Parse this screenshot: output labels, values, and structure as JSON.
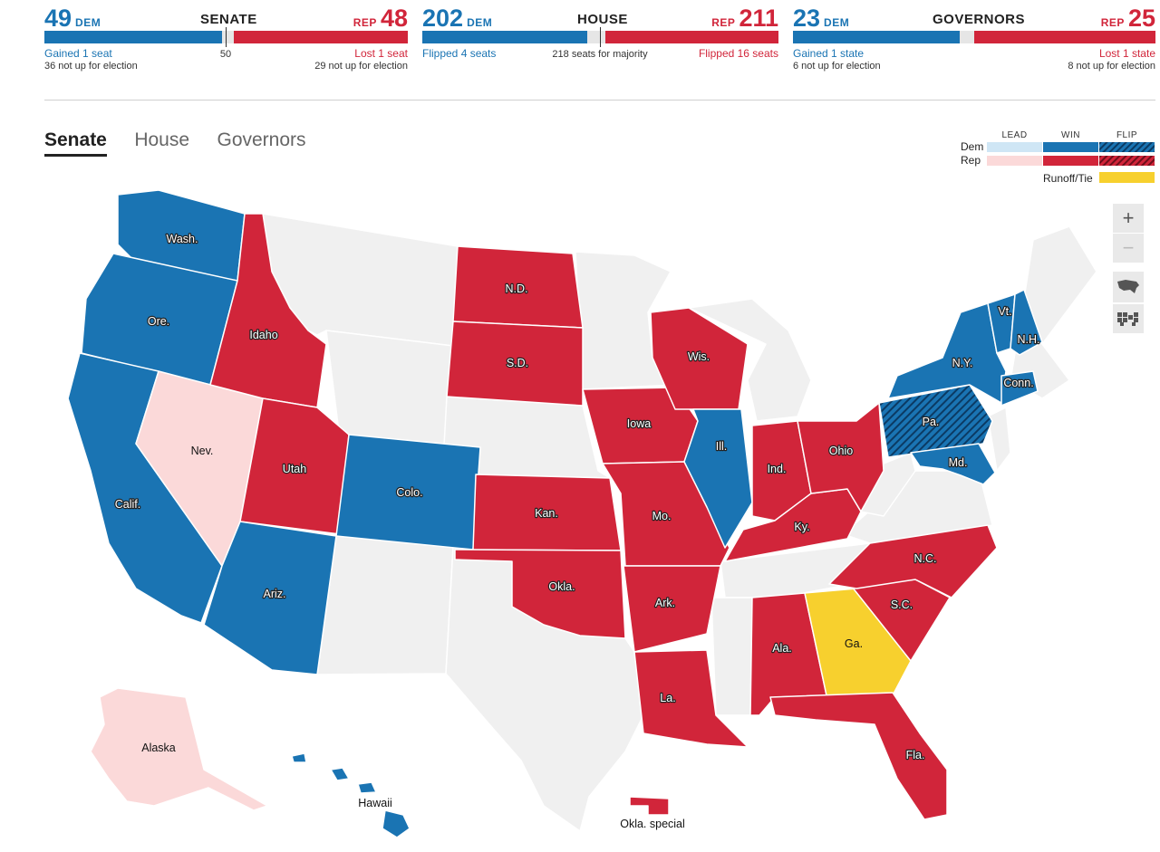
{
  "races": [
    {
      "dem_num": "49",
      "dem_label": "DEM",
      "title": "SENATE",
      "rep_label": "REP",
      "rep_num": "48",
      "dem_change": "Gained 1 seat",
      "dem_not_up": "36 not up for election",
      "majority": "50",
      "rep_change": "Lost 1 seat",
      "rep_not_up": "29 not up for election",
      "dem_fraction": 0.49,
      "rep_fraction": 0.48
    },
    {
      "dem_num": "202",
      "dem_label": "DEM",
      "title": "HOUSE",
      "rep_label": "REP",
      "rep_num": "211",
      "dem_change": "Flipped 4 seats",
      "dem_not_up": "",
      "majority": "218 seats for majority",
      "rep_change": "Flipped 16 seats",
      "rep_not_up": "",
      "dem_fraction": 0.464,
      "rep_fraction": 0.485
    },
    {
      "dem_num": "23",
      "dem_label": "DEM",
      "title": "GOVERNORS",
      "rep_label": "REP",
      "rep_num": "25",
      "dem_change": "Gained 1 state",
      "dem_not_up": "6 not up for election",
      "majority": "",
      "rep_change": "Lost 1 state",
      "rep_not_up": "8 not up for election",
      "dem_fraction": 0.46,
      "rep_fraction": 0.5
    }
  ],
  "tabs": [
    "Senate",
    "House",
    "Governors"
  ],
  "legend": {
    "headers": [
      "LEAD",
      "WIN",
      "FLIP"
    ],
    "rows": [
      "Dem",
      "Rep"
    ],
    "runoff": "Runoff/Tie",
    "colors": {
      "dem_lead": "#cfe6f5",
      "dem_win": "#1a74b3",
      "rep_lead": "#fbd9d9",
      "rep_win": "#d1253a",
      "runoff": "#f7d02e",
      "none": "#f0f0f0"
    }
  },
  "zoom": {
    "in": "+",
    "out": "−"
  },
  "states": {
    "wa": {
      "label": "Wash.",
      "status": "dem_win"
    },
    "or": {
      "label": "Ore.",
      "status": "dem_win"
    },
    "ca": {
      "label": "Calif.",
      "status": "dem_win"
    },
    "nv": {
      "label": "Nev.",
      "status": "rep_lead"
    },
    "id": {
      "label": "Idaho",
      "status": "rep_win"
    },
    "ut": {
      "label": "Utah",
      "status": "rep_win"
    },
    "az": {
      "label": "Ariz.",
      "status": "dem_win"
    },
    "co": {
      "label": "Colo.",
      "status": "dem_win"
    },
    "nd": {
      "label": "N.D.",
      "status": "rep_win"
    },
    "sd": {
      "label": "S.D.",
      "status": "rep_win"
    },
    "ks": {
      "label": "Kan.",
      "status": "rep_win"
    },
    "ok": {
      "label": "Okla.",
      "status": "rep_win"
    },
    "ia": {
      "label": "Iowa",
      "status": "rep_win"
    },
    "mo": {
      "label": "Mo.",
      "status": "rep_win"
    },
    "ar": {
      "label": "Ark.",
      "status": "rep_win"
    },
    "la": {
      "label": "La.",
      "status": "rep_win"
    },
    "wi": {
      "label": "Wis.",
      "status": "rep_win"
    },
    "il": {
      "label": "Ill.",
      "status": "dem_win"
    },
    "in": {
      "label": "Ind.",
      "status": "rep_win"
    },
    "ky": {
      "label": "Ky.",
      "status": "rep_win"
    },
    "oh": {
      "label": "Ohio",
      "status": "rep_win"
    },
    "al": {
      "label": "Ala.",
      "status": "rep_win"
    },
    "ga": {
      "label": "Ga.",
      "status": "runoff"
    },
    "fl": {
      "label": "Fla.",
      "status": "rep_win"
    },
    "sc": {
      "label": "S.C.",
      "status": "rep_win"
    },
    "nc": {
      "label": "N.C.",
      "status": "rep_win"
    },
    "pa": {
      "label": "Pa.",
      "status": "dem_flip"
    },
    "md": {
      "label": "Md.",
      "status": "dem_win"
    },
    "ny": {
      "label": "N.Y.",
      "status": "dem_win"
    },
    "vt": {
      "label": "Vt.",
      "status": "dem_win"
    },
    "nh": {
      "label": "N.H.",
      "status": "dem_win"
    },
    "ct": {
      "label": "Conn.",
      "status": "dem_win"
    },
    "ak": {
      "label": "Alaska",
      "status": "rep_lead"
    },
    "hi": {
      "label": "Hawaii",
      "status": "dem_win"
    },
    "ok_special": {
      "label": "Okla. special",
      "status": "rep_win"
    }
  }
}
